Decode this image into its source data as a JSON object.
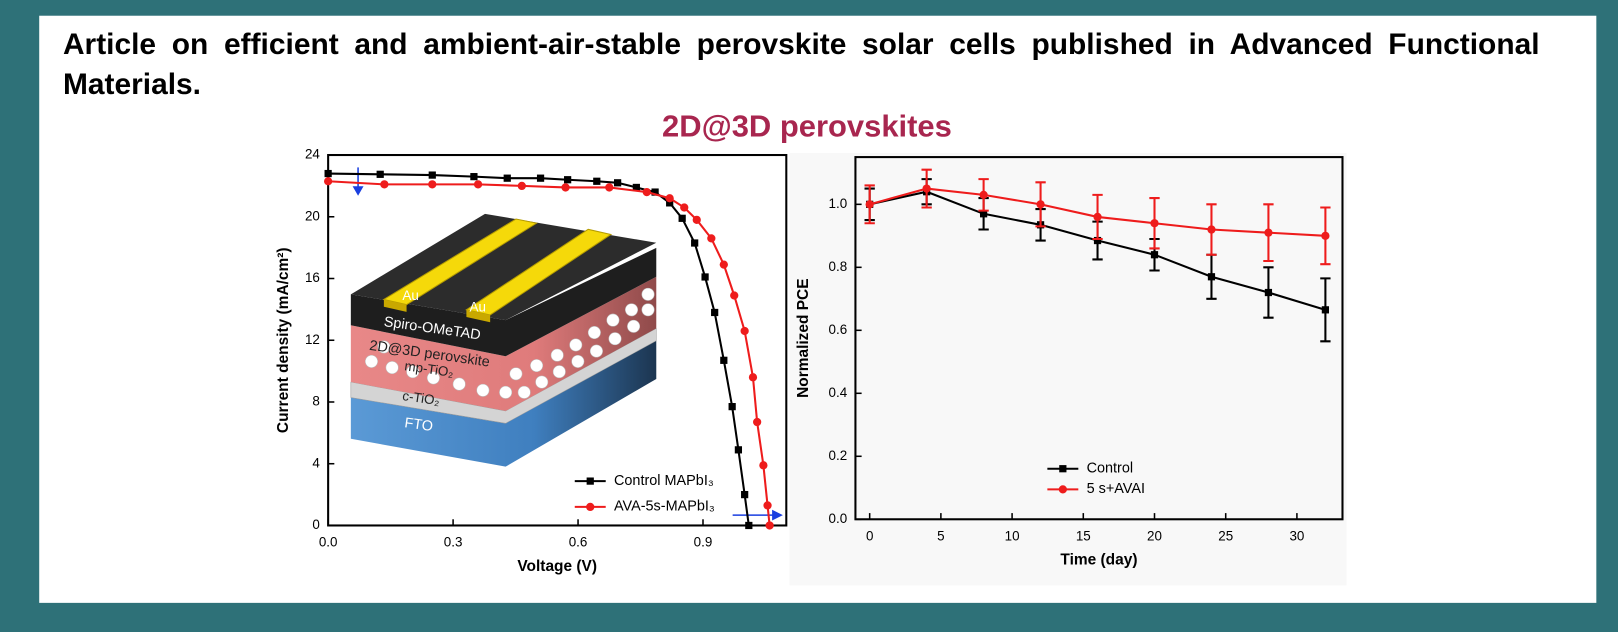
{
  "header": {
    "text": "Article on efficient and ambient-air-stable perovskite solar cells published in Advanced Functional Materials.",
    "subtitle": "2D@3D perovskites"
  },
  "inset_labels": [
    "Au",
    "Au",
    "Spiro-OMeTAD",
    "2D@3D perovskite",
    "mp-TiO₂",
    "c-TiO₂",
    "FTO"
  ],
  "chart_data": [
    {
      "type": "line",
      "x_label": "Voltage (V)",
      "y_label": "Current density (mA/cm²)",
      "xlim": [
        0,
        1.1
      ],
      "ylim": [
        0,
        24
      ],
      "xticks": [
        {
          "value": 0,
          "label": "0.0"
        },
        {
          "value": 0.3,
          "label": "0.3"
        },
        {
          "value": 0.6,
          "label": "0.6"
        },
        {
          "value": 0.9,
          "label": "0.9"
        }
      ],
      "yticks": [
        0,
        4,
        8,
        12,
        16,
        20,
        24
      ],
      "legend": "lower right",
      "series": [
        {
          "name": "Control MAPbI₃",
          "color": "#000000",
          "marker": "square",
          "x": [
            0,
            0.125,
            0.25,
            0.35,
            0.43,
            0.51,
            0.575,
            0.645,
            0.695,
            0.74,
            0.785,
            0.82,
            0.85,
            0.88,
            0.905,
            0.928,
            0.95,
            0.97,
            0.985,
            1.0,
            1.01
          ],
          "values": [
            22.8,
            22.75,
            22.7,
            22.6,
            22.5,
            22.5,
            22.4,
            22.3,
            22.2,
            21.9,
            21.6,
            20.9,
            19.9,
            18.3,
            16.1,
            13.8,
            10.7,
            7.7,
            4.9,
            2.0,
            0
          ]
        },
        {
          "name": "AVA-5s-MAPbI₃",
          "color": "#ee1c1c",
          "marker": "circle",
          "x": [
            0,
            0.135,
            0.25,
            0.36,
            0.465,
            0.57,
            0.675,
            0.765,
            0.82,
            0.855,
            0.885,
            0.92,
            0.95,
            0.975,
            1.0,
            1.02,
            1.03,
            1.045,
            1.055,
            1.06
          ],
          "values": [
            22.3,
            22.1,
            22.1,
            22.1,
            22.0,
            21.9,
            21.9,
            21.6,
            21.2,
            20.6,
            19.8,
            18.6,
            16.9,
            14.9,
            12.6,
            9.6,
            6.7,
            3.9,
            1.3,
            0
          ]
        }
      ]
    },
    {
      "type": "line",
      "x_label": "Time (day)",
      "y_label": "Normalized PCE",
      "xlim": [
        -1,
        33.2
      ],
      "ylim": [
        0,
        1.15
      ],
      "xticks": [
        0,
        5,
        10,
        15,
        20,
        25,
        30
      ],
      "yticks": [
        {
          "value": 0,
          "label": "0.0"
        },
        {
          "value": 0.2,
          "label": "0.2"
        },
        {
          "value": 0.4,
          "label": "0.4"
        },
        {
          "value": 0.6,
          "label": "0.6"
        },
        {
          "value": 0.8,
          "label": "0.8"
        },
        {
          "value": 1.0,
          "label": "1.0"
        }
      ],
      "legend": "lower center",
      "series": [
        {
          "name": "Control",
          "color": "#000000",
          "marker": "square",
          "x": [
            0,
            4,
            8,
            12,
            16,
            20,
            24,
            28,
            32
          ],
          "values": [
            1.0,
            1.04,
            0.97,
            0.935,
            0.885,
            0.84,
            0.77,
            0.72,
            0.665
          ],
          "errors": [
            0.05,
            0.04,
            0.05,
            0.05,
            0.06,
            0.05,
            0.07,
            0.08,
            0.1
          ]
        },
        {
          "name": "5 s+AVAI",
          "color": "#ee1c1c",
          "marker": "circle",
          "x": [
            0,
            4,
            8,
            12,
            16,
            20,
            24,
            28,
            32
          ],
          "values": [
            1.0,
            1.05,
            1.03,
            1.0,
            0.96,
            0.94,
            0.92,
            0.91,
            0.9
          ],
          "errors": [
            0.06,
            0.06,
            0.05,
            0.07,
            0.07,
            0.08,
            0.08,
            0.09,
            0.09
          ]
        }
      ]
    }
  ]
}
